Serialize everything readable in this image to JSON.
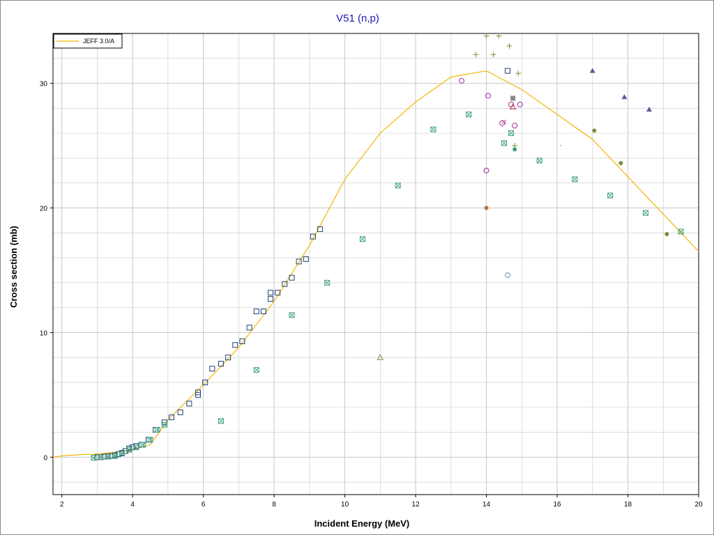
{
  "chart_data": {
    "type": "scatter",
    "title": "V51 (n,p)",
    "xlabel": "Incident Energy (MeV)",
    "ylabel": "Cross section (mb)",
    "xlim": [
      1.75,
      20
    ],
    "ylim": [
      -3,
      34
    ],
    "xticks": [
      2,
      4,
      6,
      8,
      10,
      12,
      14,
      16,
      18,
      20
    ],
    "yticks": [
      0,
      10,
      20,
      30
    ],
    "grid": true,
    "legend": "top-left",
    "colors": {
      "title": "#1b1bb4",
      "evaluation_line": "#f5b400",
      "grid": "#c8c8c8",
      "frame": "#8a8a8a"
    },
    "series": [
      {
        "name": "JEFF 3.0/A",
        "type": "line",
        "color": "#f5b400",
        "x": [
          1.75,
          2.0,
          2.5,
          3.0,
          3.5,
          4.0,
          4.5,
          5.0,
          6.0,
          7.0,
          8.0,
          9.0,
          10.0,
          11.0,
          12.0,
          13.0,
          14.0,
          15.0,
          16.0,
          17.0,
          18.0,
          19.0,
          20.0
        ],
        "y": [
          0.0,
          0.1,
          0.2,
          0.25,
          0.4,
          0.6,
          1.0,
          3.0,
          5.8,
          8.8,
          12.5,
          17.0,
          22.3,
          26.0,
          28.5,
          30.5,
          31.0,
          29.5,
          27.5,
          25.5,
          22.5,
          19.5,
          16.5
        ]
      },
      {
        "marker": "square",
        "color": "#1f3f77",
        "x": [
          3.0,
          3.1,
          3.2,
          3.3,
          3.4,
          3.5,
          3.6,
          3.7,
          3.8,
          3.9,
          4.0,
          4.1,
          4.25,
          4.45,
          4.65,
          4.9,
          5.1,
          5.35,
          5.6,
          5.85,
          5.85,
          6.05,
          6.25,
          6.5,
          6.7,
          6.9,
          7.1,
          7.3,
          7.5,
          7.7,
          7.9,
          7.9,
          8.1,
          8.3,
          8.5,
          8.7,
          8.9,
          9.1,
          9.3,
          14.6
        ],
        "y": [
          0.0,
          0.0,
          0.05,
          0.08,
          0.1,
          0.15,
          0.25,
          0.35,
          0.5,
          0.7,
          0.8,
          0.9,
          1.0,
          1.4,
          2.2,
          2.8,
          3.2,
          3.6,
          4.3,
          5.0,
          5.2,
          6.0,
          7.1,
          7.5,
          8.0,
          9.0,
          9.3,
          10.4,
          11.7,
          11.7,
          12.7,
          13.2,
          13.2,
          13.9,
          14.4,
          15.7,
          15.9,
          17.7,
          18.3,
          31.0
        ]
      },
      {
        "marker": "x-square",
        "color": "#3aa07c",
        "x": [
          2.9,
          3.1,
          3.3,
          3.5,
          3.7,
          3.9,
          4.1,
          4.3,
          4.5,
          4.7,
          4.9,
          6.5,
          7.5,
          8.5,
          9.5,
          10.5,
          11.5,
          12.5,
          13.5,
          14.5,
          15.5,
          16.5,
          17.5,
          18.5,
          19.5,
          14.7
        ],
        "y": [
          -0.05,
          0.0,
          0.05,
          0.1,
          0.3,
          0.6,
          0.8,
          1.0,
          1.4,
          2.2,
          2.6,
          2.9,
          7.0,
          11.4,
          14.0,
          17.5,
          21.8,
          26.3,
          27.5,
          25.2,
          23.8,
          22.3,
          21.0,
          19.6,
          18.1,
          26.0
        ]
      },
      {
        "marker": "plus",
        "color": "#7a8c3a",
        "x": [
          13.7,
          14.0,
          14.2,
          14.35,
          14.65,
          14.9,
          14.8
        ],
        "y": [
          32.3,
          33.8,
          32.3,
          33.8,
          33.0,
          30.8,
          25.0
        ]
      },
      {
        "marker": "open-circle",
        "color": "#9a2c9a",
        "x": [
          13.3,
          14.05,
          14.45,
          14.7,
          14.8,
          14.95
        ],
        "y": [
          30.2,
          29.0,
          26.8,
          28.3,
          26.6,
          28.3
        ]
      },
      {
        "marker": "filled-triangle",
        "color": "#5a5a9a",
        "x": [
          17.0,
          17.9,
          18.6
        ],
        "y": [
          31.0,
          28.9,
          27.9
        ]
      },
      {
        "marker": "filled-circle",
        "color": "#7a8c3a",
        "x": [
          17.05,
          17.8,
          19.1
        ],
        "y": [
          26.2,
          23.6,
          17.9
        ]
      },
      {
        "marker": "other",
        "color": "#888888",
        "x": [
          11.0,
          14.6,
          14.0,
          14.8,
          14.0,
          14.75,
          14.75,
          14.5,
          16.1
        ],
        "y": [
          8.0,
          14.6,
          20.0,
          24.7,
          23.0,
          28.1,
          28.8,
          26.9,
          25.0
        ]
      }
    ]
  }
}
